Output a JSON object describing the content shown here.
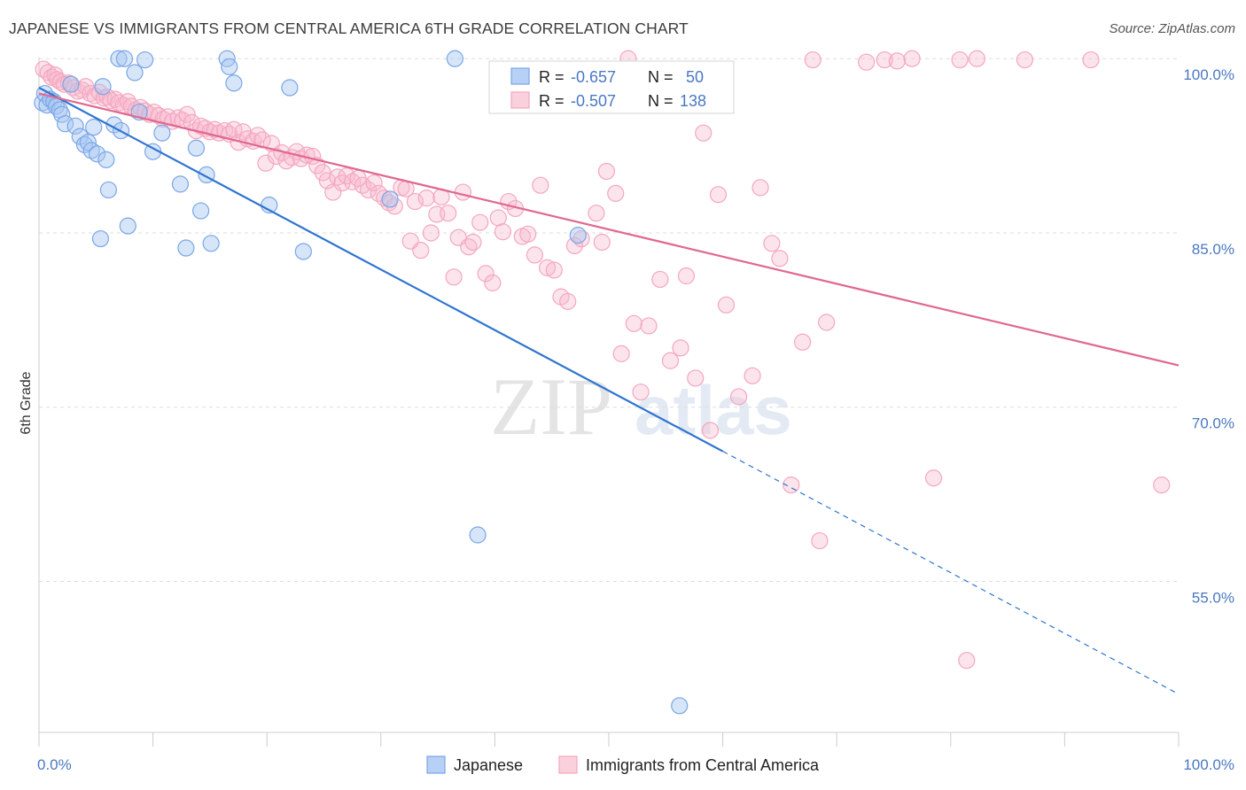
{
  "title": "JAPANESE VS IMMIGRANTS FROM CENTRAL AMERICA 6TH GRADE CORRELATION CHART",
  "source": "Source: ZipAtlas.com",
  "watermark": {
    "zip": "ZIP",
    "atlas": "atlas"
  },
  "chart_data": {
    "type": "scatter",
    "xlabel": "",
    "ylabel": "6th Grade",
    "xlim": [
      0,
      100
    ],
    "ylim": [
      42,
      102
    ],
    "x_tick_labels": [
      "0.0%",
      "100.0%"
    ],
    "y_ticks": [
      100,
      85,
      70,
      55
    ],
    "y_tick_labels": [
      "100.0%",
      "85.0%",
      "70.0%",
      "55.0%"
    ],
    "grid": true,
    "legend_placement": "top-center",
    "stats": [
      {
        "r_label": "R = ",
        "r_value": "-0.657",
        "n_label": "N = ",
        "n_value": "50"
      },
      {
        "r_label": "R = ",
        "r_value": "-0.507",
        "n_label": "N = ",
        "n_value": "138"
      }
    ],
    "series": [
      {
        "name": "Japanese",
        "color": "#7aa6e6",
        "line_color": "#2f74d0",
        "trend": {
          "x1": 0,
          "y1": 97.5,
          "x2": 60,
          "y2": 66.2,
          "dash_to_x": 100,
          "dash_to_y": 45.3
        },
        "points": [
          [
            0.3,
            96.2
          ],
          [
            0.5,
            97.0
          ],
          [
            0.7,
            96.0
          ],
          [
            1.0,
            96.5
          ],
          [
            1.3,
            96.3
          ],
          [
            1.5,
            95.9
          ],
          [
            1.8,
            95.6
          ],
          [
            2.0,
            95.2
          ],
          [
            2.3,
            94.4
          ],
          [
            2.8,
            97.8
          ],
          [
            3.2,
            94.2
          ],
          [
            3.6,
            93.3
          ],
          [
            4.0,
            92.6
          ],
          [
            4.3,
            92.8
          ],
          [
            4.6,
            92.1
          ],
          [
            4.8,
            94.1
          ],
          [
            5.1,
            91.8
          ],
          [
            5.4,
            84.5
          ],
          [
            5.6,
            97.6
          ],
          [
            5.9,
            91.3
          ],
          [
            6.1,
            88.7
          ],
          [
            6.6,
            94.3
          ],
          [
            7.0,
            100.0
          ],
          [
            7.2,
            93.8
          ],
          [
            7.5,
            100.0
          ],
          [
            7.8,
            85.6
          ],
          [
            8.4,
            98.8
          ],
          [
            8.8,
            95.4
          ],
          [
            9.3,
            99.9
          ],
          [
            10.0,
            92.0
          ],
          [
            10.8,
            93.6
          ],
          [
            12.4,
            89.2
          ],
          [
            12.9,
            83.7
          ],
          [
            13.8,
            92.3
          ],
          [
            14.2,
            86.9
          ],
          [
            14.7,
            90.0
          ],
          [
            15.1,
            84.1
          ],
          [
            16.5,
            100.0
          ],
          [
            16.7,
            99.3
          ],
          [
            17.1,
            97.9
          ],
          [
            20.2,
            87.4
          ],
          [
            22.0,
            97.5
          ],
          [
            23.2,
            83.4
          ],
          [
            30.8,
            87.9
          ],
          [
            36.5,
            100.0
          ],
          [
            38.5,
            59.0
          ],
          [
            47.3,
            84.8
          ],
          [
            56.2,
            44.3
          ]
        ]
      },
      {
        "name": "Immigrants from Central America",
        "color": "#f4a7bf",
        "line_color": "#e0688f",
        "trend": {
          "x1": 0,
          "y1": 97.0,
          "x2": 100,
          "y2": 73.6
        },
        "points": [
          [
            0.4,
            99.1
          ],
          [
            0.8,
            98.8
          ],
          [
            1.1,
            98.4
          ],
          [
            1.4,
            98.6
          ],
          [
            1.6,
            98.2
          ],
          [
            1.9,
            98.0
          ],
          [
            2.2,
            97.8
          ],
          [
            2.6,
            97.9
          ],
          [
            3.0,
            97.5
          ],
          [
            3.4,
            97.2
          ],
          [
            3.8,
            97.3
          ],
          [
            4.1,
            97.6
          ],
          [
            4.5,
            97.0
          ],
          [
            4.9,
            96.8
          ],
          [
            5.3,
            97.1
          ],
          [
            5.7,
            96.6
          ],
          [
            6.0,
            96.7
          ],
          [
            6.3,
            96.4
          ],
          [
            6.7,
            96.5
          ],
          [
            7.0,
            96.2
          ],
          [
            7.4,
            96.0
          ],
          [
            7.8,
            96.3
          ],
          [
            8.1,
            95.9
          ],
          [
            8.5,
            95.6
          ],
          [
            8.9,
            95.8
          ],
          [
            9.3,
            95.5
          ],
          [
            9.7,
            95.2
          ],
          [
            10.1,
            95.4
          ],
          [
            10.5,
            95.1
          ],
          [
            10.9,
            94.8
          ],
          [
            11.3,
            95.0
          ],
          [
            11.7,
            94.6
          ],
          [
            12.2,
            94.9
          ],
          [
            12.6,
            94.7
          ],
          [
            13.0,
            95.2
          ],
          [
            13.4,
            94.5
          ],
          [
            13.8,
            93.8
          ],
          [
            14.2,
            94.2
          ],
          [
            14.6,
            94.0
          ],
          [
            15.0,
            93.7
          ],
          [
            15.4,
            93.9
          ],
          [
            15.8,
            93.6
          ],
          [
            16.3,
            93.8
          ],
          [
            16.7,
            93.5
          ],
          [
            17.1,
            93.9
          ],
          [
            17.5,
            92.8
          ],
          [
            17.9,
            93.7
          ],
          [
            18.3,
            93.1
          ],
          [
            18.8,
            92.9
          ],
          [
            19.2,
            93.4
          ],
          [
            19.6,
            93.0
          ],
          [
            19.9,
            91.0
          ],
          [
            20.4,
            92.7
          ],
          [
            20.8,
            91.6
          ],
          [
            21.3,
            91.9
          ],
          [
            21.7,
            91.2
          ],
          [
            22.2,
            91.5
          ],
          [
            22.6,
            92.0
          ],
          [
            23.0,
            91.4
          ],
          [
            23.5,
            91.7
          ],
          [
            24.0,
            91.6
          ],
          [
            24.4,
            90.8
          ],
          [
            24.9,
            90.2
          ],
          [
            25.3,
            89.5
          ],
          [
            25.8,
            88.5
          ],
          [
            26.2,
            89.8
          ],
          [
            26.6,
            89.3
          ],
          [
            27.0,
            89.9
          ],
          [
            27.5,
            89.4
          ],
          [
            28.0,
            89.7
          ],
          [
            28.4,
            89.1
          ],
          [
            28.9,
            88.7
          ],
          [
            29.4,
            89.3
          ],
          [
            29.8,
            88.4
          ],
          [
            30.3,
            88.0
          ],
          [
            30.7,
            87.6
          ],
          [
            31.2,
            87.3
          ],
          [
            31.8,
            88.9
          ],
          [
            32.2,
            88.8
          ],
          [
            32.6,
            84.3
          ],
          [
            33.0,
            87.7
          ],
          [
            33.5,
            83.5
          ],
          [
            34.0,
            88.0
          ],
          [
            34.4,
            85.0
          ],
          [
            34.9,
            86.6
          ],
          [
            35.3,
            88.1
          ],
          [
            35.9,
            86.7
          ],
          [
            36.4,
            81.2
          ],
          [
            36.8,
            84.6
          ],
          [
            37.2,
            88.5
          ],
          [
            37.7,
            83.8
          ],
          [
            38.1,
            84.2
          ],
          [
            38.7,
            85.9
          ],
          [
            39.2,
            81.5
          ],
          [
            39.8,
            80.7
          ],
          [
            40.3,
            86.3
          ],
          [
            40.7,
            85.1
          ],
          [
            41.2,
            87.7
          ],
          [
            41.8,
            87.1
          ],
          [
            42.4,
            84.7
          ],
          [
            42.9,
            84.9
          ],
          [
            43.5,
            83.1
          ],
          [
            44.0,
            89.1
          ],
          [
            44.6,
            82.0
          ],
          [
            45.2,
            81.8
          ],
          [
            45.8,
            79.5
          ],
          [
            46.4,
            79.1
          ],
          [
            47.0,
            83.9
          ],
          [
            47.6,
            84.5
          ],
          [
            48.1,
            98.9
          ],
          [
            48.9,
            86.7
          ],
          [
            49.4,
            84.2
          ],
          [
            49.8,
            90.3
          ],
          [
            50.6,
            88.4
          ],
          [
            51.1,
            74.6
          ],
          [
            51.7,
            100.0
          ],
          [
            52.2,
            77.2
          ],
          [
            52.8,
            71.3
          ],
          [
            53.5,
            77.0
          ],
          [
            54.5,
            81.0
          ],
          [
            55.4,
            74.0
          ],
          [
            56.3,
            75.1
          ],
          [
            56.8,
            81.3
          ],
          [
            57.6,
            72.5
          ],
          [
            58.3,
            93.6
          ],
          [
            58.9,
            68.0
          ],
          [
            59.6,
            88.3
          ],
          [
            60.3,
            78.8
          ],
          [
            61.4,
            70.9
          ],
          [
            62.6,
            72.7
          ],
          [
            63.3,
            88.9
          ],
          [
            64.3,
            84.1
          ],
          [
            65.0,
            82.8
          ],
          [
            66.0,
            63.3
          ],
          [
            67.0,
            75.6
          ],
          [
            67.9,
            99.9
          ],
          [
            68.5,
            58.5
          ],
          [
            69.1,
            77.3
          ],
          [
            72.6,
            99.7
          ],
          [
            74.2,
            99.9
          ],
          [
            75.3,
            99.8
          ],
          [
            76.6,
            100.0
          ],
          [
            78.5,
            63.9
          ],
          [
            80.8,
            99.9
          ],
          [
            81.4,
            48.2
          ],
          [
            82.3,
            100.0
          ],
          [
            86.5,
            99.9
          ],
          [
            92.3,
            99.9
          ],
          [
            98.5,
            63.3
          ]
        ]
      }
    ]
  }
}
